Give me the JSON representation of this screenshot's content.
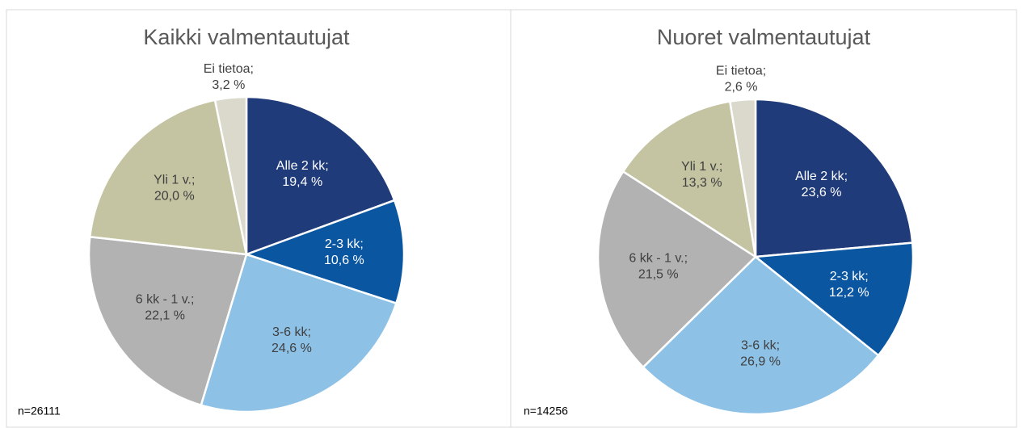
{
  "chart_data": [
    {
      "type": "pie",
      "title": "Kaikki valmentautujat",
      "categories": [
        "Alle 2 kk;",
        "2-3 kk;",
        "3-6 kk;",
        "6 kk - 1 v.;",
        "Yli 1 v.;",
        "Ei tietoa;"
      ],
      "values": [
        19.4,
        10.6,
        24.6,
        22.1,
        20.0,
        3.2
      ],
      "value_labels": [
        "19,4 %",
        "10,6 %",
        "24,6 %",
        "22,1 %",
        "20,0 %",
        "3,2 %"
      ],
      "colors": [
        "#1f3b79",
        "#0a56a0",
        "#8dc1e6",
        "#b2b2b2",
        "#c4c4a2",
        "#dad9cc"
      ],
      "label_colors": [
        "#ffffff",
        "#ffffff",
        "#404040",
        "#404040",
        "#404040",
        "#404040"
      ],
      "note": "n=26111"
    },
    {
      "type": "pie",
      "title": "Nuoret valmentautujat",
      "categories": [
        "Alle 2 kk;",
        "2-3 kk;",
        "3-6 kk;",
        "6 kk - 1 v.;",
        "Yli 1 v.;",
        "Ei tietoa;"
      ],
      "values": [
        23.6,
        12.2,
        26.9,
        21.5,
        13.3,
        2.6
      ],
      "value_labels": [
        "23,6 %",
        "12,2 %",
        "26,9 %",
        "21,5 %",
        "13,3 %",
        "2,6 %"
      ],
      "colors": [
        "#1f3b79",
        "#0a56a0",
        "#8dc1e6",
        "#b2b2b2",
        "#c4c4a2",
        "#dad9cc"
      ],
      "label_colors": [
        "#ffffff",
        "#ffffff",
        "#404040",
        "#404040",
        "#404040",
        "#404040"
      ],
      "note": "n=14256"
    }
  ]
}
